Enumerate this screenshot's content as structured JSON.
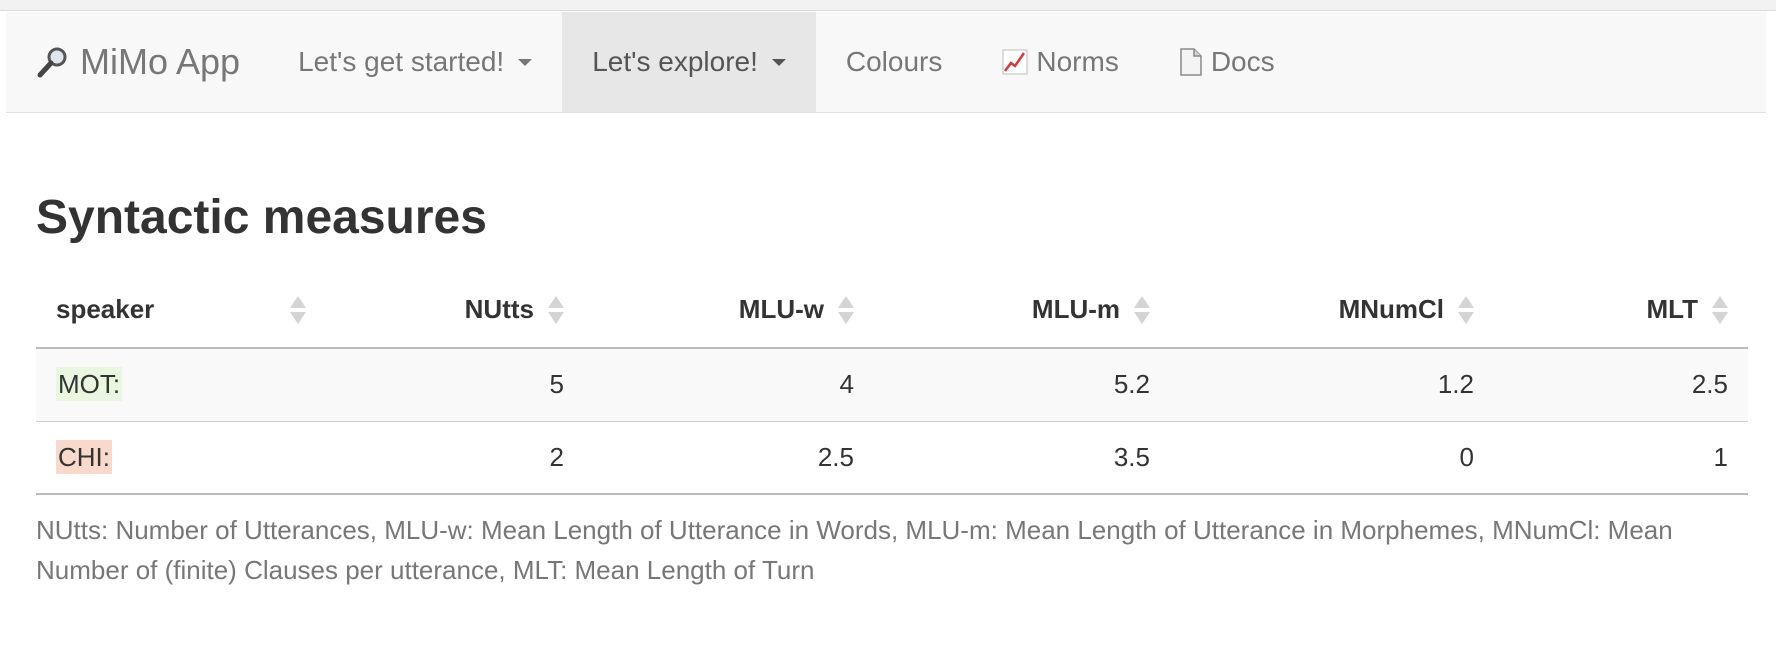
{
  "navbar": {
    "brand": "MiMo App",
    "brand_icon": "magnifier-icon",
    "items": [
      {
        "label": "Let's get started!",
        "dropdown": true,
        "active": false
      },
      {
        "label": "Let's explore!",
        "dropdown": true,
        "active": true
      },
      {
        "label": "Colours",
        "dropdown": false,
        "active": false
      },
      {
        "label": "Norms",
        "icon": "chart-icon",
        "dropdown": false,
        "active": false
      },
      {
        "label": "Docs",
        "icon": "document-icon",
        "dropdown": false,
        "active": false
      }
    ]
  },
  "page": {
    "title": "Syntactic measures"
  },
  "table": {
    "columns": [
      "speaker",
      "NUtts",
      "MLU-w",
      "MLU-m",
      "MNumCl",
      "MLT"
    ],
    "rows": [
      {
        "speaker": "MOT:",
        "speaker_color": "#eaf7e0",
        "values": [
          "5",
          "4",
          "5.2",
          "1.2",
          "2.5"
        ]
      },
      {
        "speaker": "CHI:",
        "speaker_color": "#f8d9cc",
        "values": [
          "2",
          "2.5",
          "3.5",
          "0",
          "1"
        ]
      }
    ]
  },
  "caption": "NUtts: Number of Utterances, MLU-w: Mean Length of Utterance in Words, MLU-m: Mean Length of Utterance in Morphemes, MNumCl: Mean Number of (finite) Clauses per utterance, MLT: Mean Length of Turn",
  "colors": {
    "navbar_bg": "#f8f8f8",
    "active_nav_bg": "#e7e7e7",
    "nav_text": "#777777",
    "heading_text": "#333333"
  }
}
